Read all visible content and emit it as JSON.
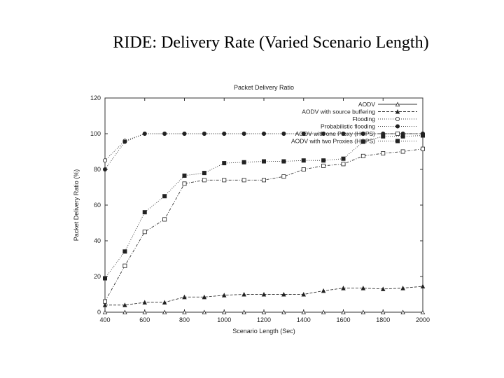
{
  "slide": {
    "title": "RIDE: Delivery Rate (Varied Scenario Length)"
  },
  "chart_data": {
    "type": "line",
    "title": "Packet Delivery Ratio",
    "xlabel": "Scenario Length (Sec)",
    "ylabel": "Packet Delivery Ratio (%)",
    "xlim": [
      400,
      2000
    ],
    "ylim": [
      0,
      120
    ],
    "x_ticks": [
      400,
      600,
      800,
      1000,
      1200,
      1400,
      1600,
      1800,
      2000
    ],
    "y_ticks": [
      0,
      20,
      40,
      60,
      80,
      100,
      120
    ],
    "grid": false,
    "legend_position": "top-right",
    "x": [
      400,
      500,
      600,
      700,
      800,
      900,
      1000,
      1100,
      1200,
      1300,
      1400,
      1500,
      1600,
      1700,
      1800,
      1900,
      2000
    ],
    "series": [
      {
        "name": "AODV",
        "marker": "triangle-open",
        "line": "solid",
        "values": [
          0,
          0,
          0,
          0,
          0,
          0,
          0,
          0,
          0,
          0,
          0,
          0,
          0,
          0,
          0,
          0,
          0
        ]
      },
      {
        "name": "AODV with source buffering",
        "marker": "triangle-filled",
        "line": "dashed",
        "values": [
          4,
          4,
          5.5,
          5.5,
          8.5,
          8.5,
          9.5,
          10,
          10,
          10,
          10,
          12,
          13.5,
          13.5,
          13,
          13.5,
          14.5
        ]
      },
      {
        "name": "Flooding",
        "marker": "circle-open",
        "line": "dotted",
        "values": [
          85,
          96,
          100,
          100,
          100,
          100,
          100,
          100,
          100,
          100,
          100,
          100,
          100,
          100,
          100,
          100,
          100
        ]
      },
      {
        "name": "Probabilistic flooding",
        "marker": "circle-filled",
        "line": "dotted",
        "values": [
          80,
          95.5,
          100,
          100,
          100,
          100,
          100,
          100,
          100,
          100,
          100,
          100,
          100,
          100,
          100,
          100,
          100
        ]
      },
      {
        "name": "AODV with one Proxy (HOPS)",
        "marker": "square-open",
        "line": "dashdot",
        "values": [
          6,
          26,
          45,
          52,
          72,
          74,
          74,
          74,
          74,
          76,
          80,
          82,
          83,
          87.5,
          89,
          90,
          91.5
        ]
      },
      {
        "name": "AODV with two Proxies (HOPS)",
        "marker": "square-filled",
        "line": "dotted",
        "values": [
          19,
          34,
          56,
          65,
          76.5,
          78,
          83.5,
          84,
          84.5,
          84.5,
          85,
          85,
          86,
          95.5,
          98.5,
          98.5,
          99
        ]
      }
    ]
  }
}
